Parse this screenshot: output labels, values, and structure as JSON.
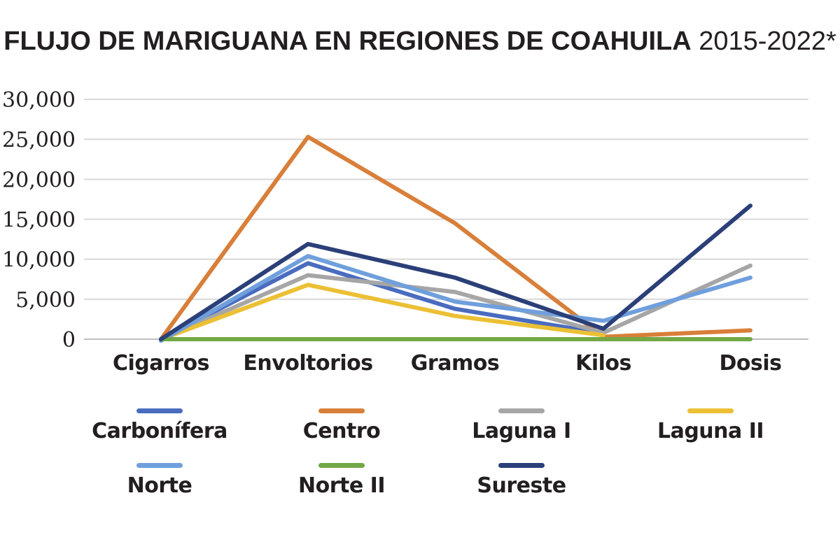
{
  "title": {
    "main": "FLUJO DE MARIGUANA EN REGIONES DE COAHUILA",
    "years": "2015-2022*"
  },
  "chart_data": {
    "type": "line",
    "title": "FLUJO DE MARIGUANA EN REGIONES DE COAHUILA 2015-2022*",
    "categories": [
      "Cigarros",
      "Envoltorios",
      "Gramos",
      "Kilos",
      "Dosis"
    ],
    "ylim": [
      0,
      30000
    ],
    "yticks": [
      0,
      5000,
      10000,
      15000,
      20000,
      25000,
      30000
    ],
    "ytick_labels": [
      "0",
      "5,000",
      "10,000",
      "15,000",
      "20,000",
      "25,000",
      "30,000"
    ],
    "grid": true,
    "legend_position": "bottom",
    "series": [
      {
        "name": "Carbonífera",
        "color": "#4a6cbf",
        "values": [
          0,
          9500,
          3800,
          700,
          null
        ]
      },
      {
        "name": "Centro",
        "color": "#d87f3a",
        "values": [
          0,
          25300,
          14500,
          300,
          1100
        ]
      },
      {
        "name": "Laguna I",
        "color": "#a6a6a6",
        "values": [
          0,
          8000,
          5900,
          800,
          9200
        ]
      },
      {
        "name": "Laguna II",
        "color": "#ebc034",
        "values": [
          0,
          6800,
          2900,
          500,
          null
        ]
      },
      {
        "name": "Norte",
        "color": "#6f9fdc",
        "values": [
          -200,
          10400,
          4700,
          2300,
          7700
        ]
      },
      {
        "name": "Norte II",
        "color": "#72a845",
        "values": [
          0,
          0,
          0,
          0,
          0
        ]
      },
      {
        "name": "Sureste",
        "color": "#2b3f78",
        "values": [
          0,
          11900,
          7700,
          1300,
          16700
        ]
      }
    ]
  }
}
